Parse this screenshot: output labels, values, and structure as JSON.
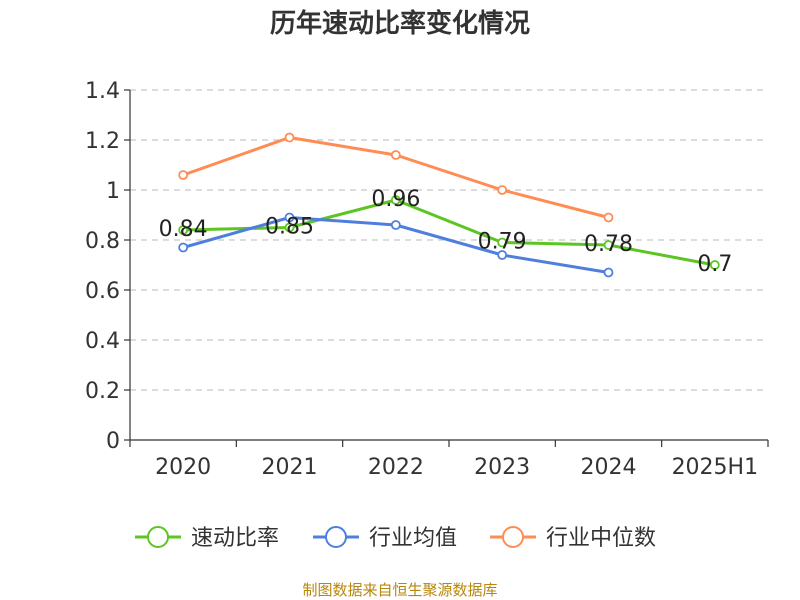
{
  "chart_data": {
    "type": "line",
    "title": "历年速动比率变化情况",
    "categories": [
      "2020",
      "2021",
      "2022",
      "2023",
      "2024",
      "2025H1"
    ],
    "ylim": [
      0,
      1.4
    ],
    "yticks": [
      "0",
      "0.2",
      "0.4",
      "0.6",
      "0.8",
      "1",
      "1.2",
      "1.4"
    ],
    "grid": "horizontal-dashed",
    "legend_position": "bottom",
    "series": [
      {
        "name": "速动比率",
        "color": "#5cc522",
        "values": [
          0.84,
          0.85,
          0.96,
          0.79,
          0.78,
          0.7
        ],
        "labels": [
          "0.84",
          "0.85",
          "0.96",
          "0.79",
          "0.78",
          "0.7"
        ]
      },
      {
        "name": "行业均值",
        "color": "#4e7fde",
        "values": [
          0.77,
          0.89,
          0.86,
          0.74,
          0.67,
          null
        ]
      },
      {
        "name": "行业中位数",
        "color": "#ff8c52",
        "values": [
          1.06,
          1.21,
          1.14,
          1.0,
          0.89,
          null
        ]
      }
    ]
  },
  "source_text": "制图数据来自恒生聚源数据库"
}
